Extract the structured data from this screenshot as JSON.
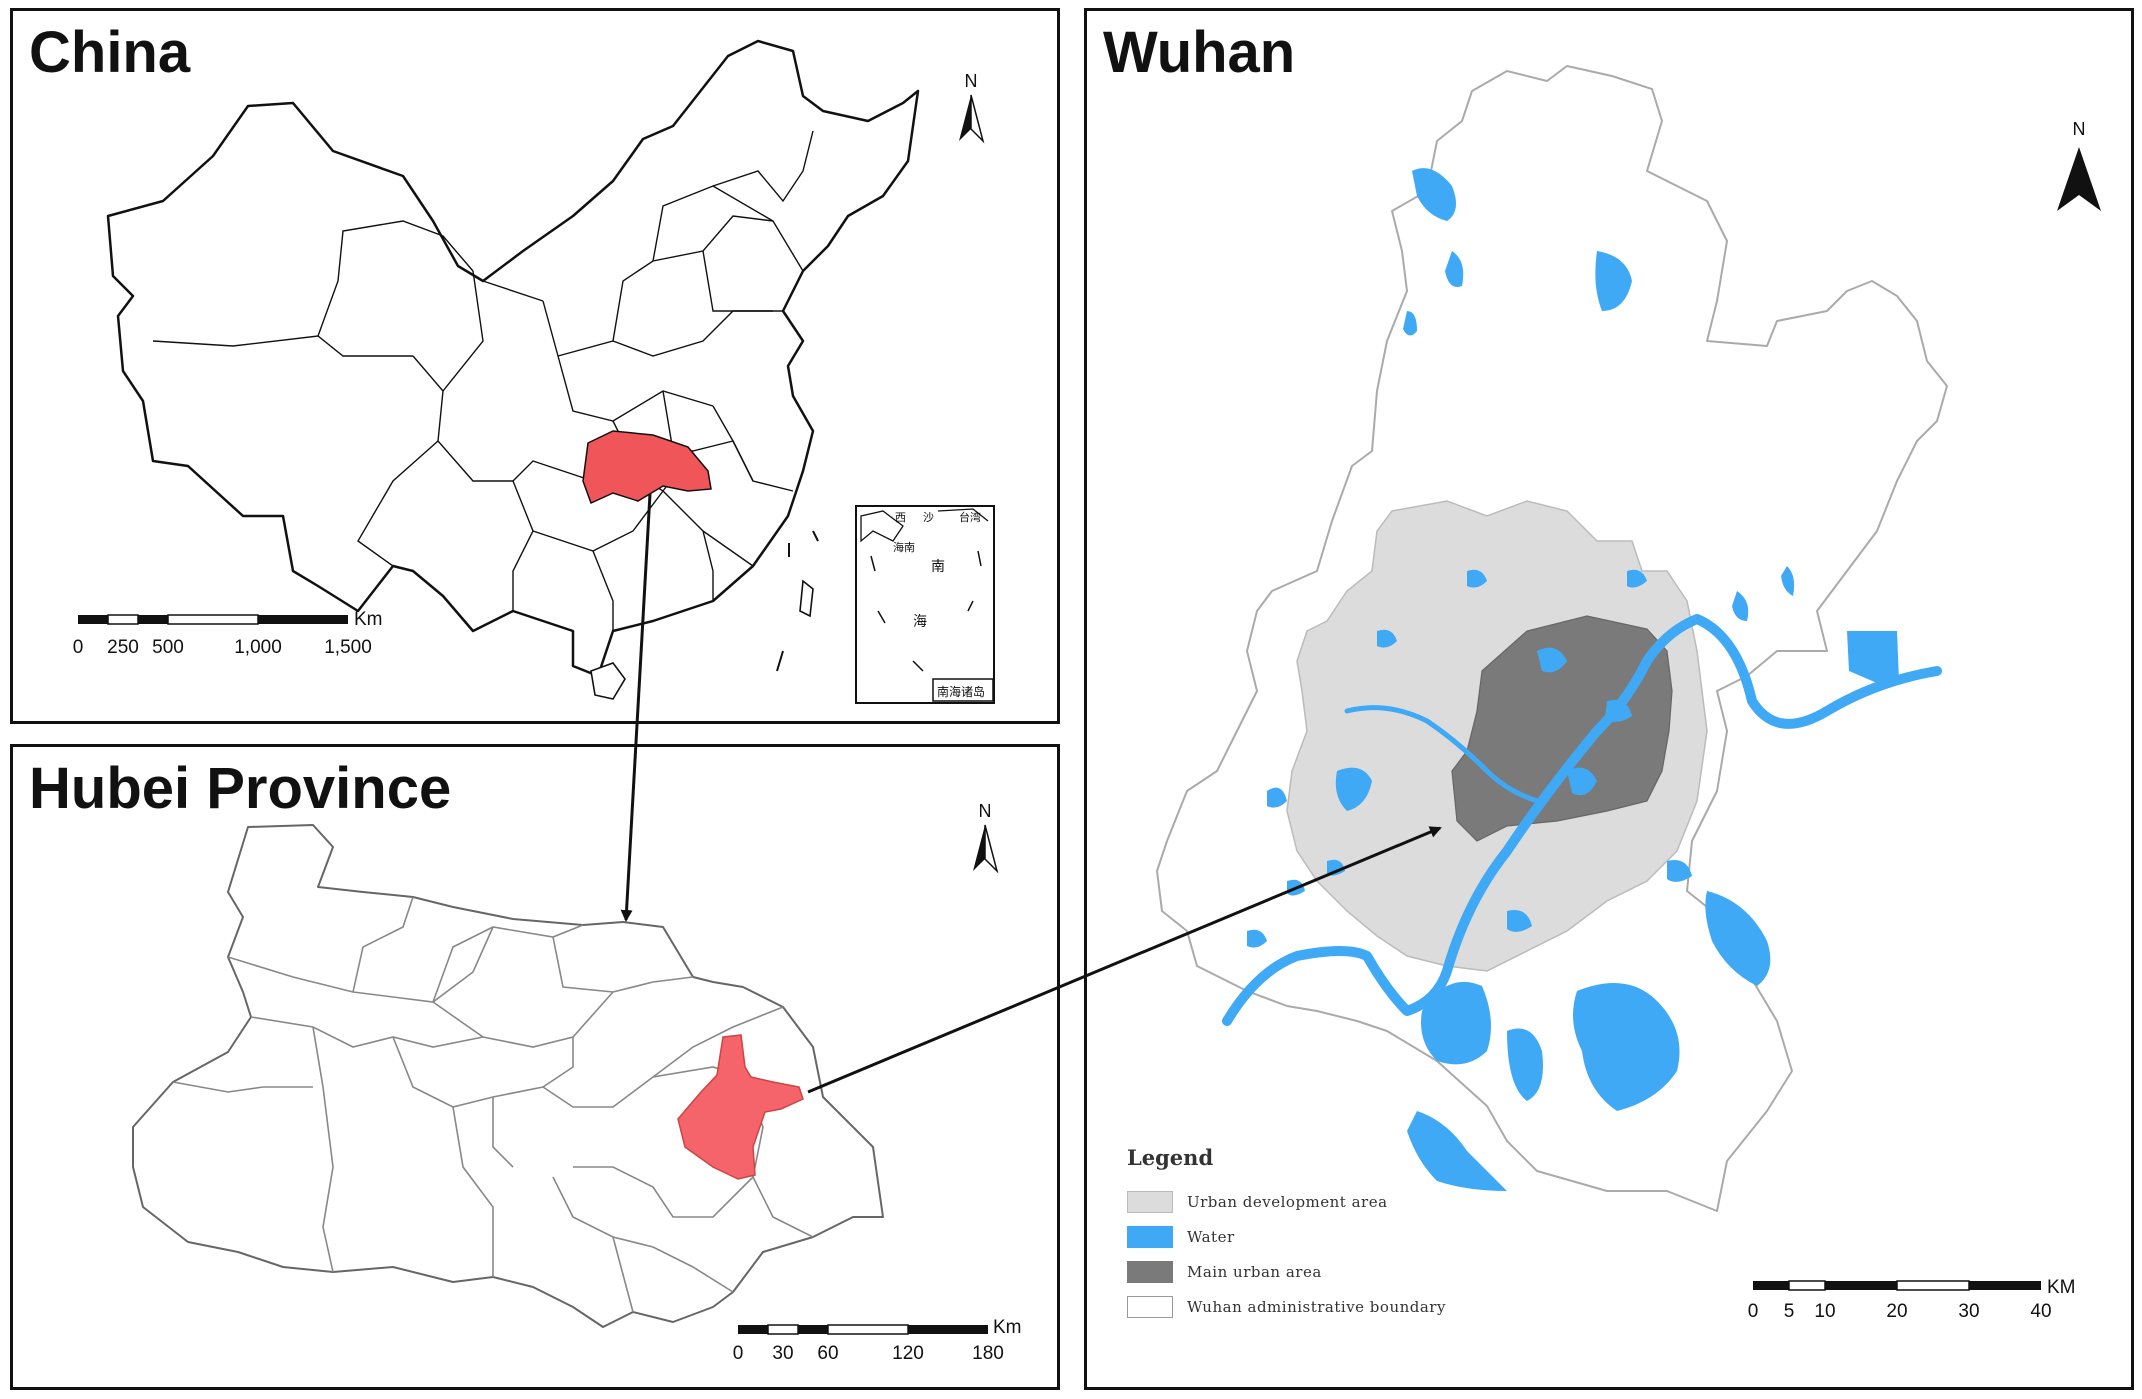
{
  "panels": {
    "china": {
      "title": "China",
      "north": "N",
      "scale": {
        "unit": "Km",
        "ticks": [
          "0",
          "250",
          "500",
          "1,000",
          "1,500"
        ]
      },
      "inset": {
        "labels": [
          "西",
          "沙",
          "台湾",
          "海南",
          "南",
          "海"
        ],
        "caption": "南海诸岛"
      }
    },
    "hubei": {
      "title": "Hubei Province",
      "north": "N",
      "scale": {
        "unit": "Km",
        "ticks": [
          "0",
          "30",
          "60",
          "120",
          "180"
        ]
      }
    },
    "wuhan": {
      "title": "Wuhan",
      "north": "N",
      "scale": {
        "unit": "KM",
        "ticks": [
          "0",
          "5",
          "10",
          "20",
          "30",
          "40"
        ]
      },
      "legend": {
        "title": "Legend",
        "items": [
          {
            "label": "Urban development area",
            "color": "#dcdcdc"
          },
          {
            "label": "Water",
            "color": "#3fa9f5"
          },
          {
            "label": "Main urban area",
            "color": "#7a7a7a"
          },
          {
            "label": "Wuhan administrative boundary",
            "color": "#ffffff"
          }
        ]
      }
    }
  },
  "colors": {
    "highlight_china": "#f0555a",
    "highlight_hubei": "#f5646a",
    "water": "#3fa9f5",
    "urban_development": "#dcdcdc",
    "main_urban": "#7a7a7a"
  }
}
